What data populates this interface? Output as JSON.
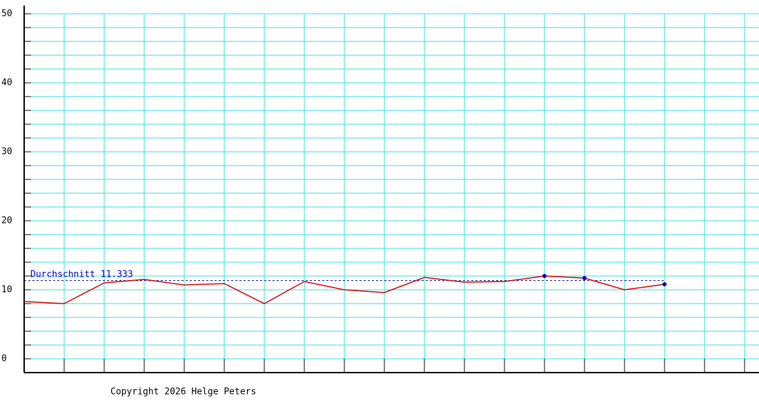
{
  "chart_data": {
    "type": "line",
    "x": [
      0,
      1,
      2,
      3,
      4,
      5,
      6,
      7,
      8,
      9,
      10,
      11,
      12,
      13,
      14,
      15,
      16
    ],
    "series": [
      {
        "color": "#cc0000",
        "values": [
          8.3,
          8.0,
          11.0,
          11.5,
          10.7,
          10.9,
          8.0,
          11.2,
          10.0,
          9.6,
          11.8,
          11.1,
          11.2,
          12.0,
          11.7,
          10.0,
          10.8
        ]
      },
      {
        "color": "#0000cc",
        "marker": true,
        "values": [
          null,
          null,
          null,
          null,
          null,
          null,
          null,
          null,
          null,
          null,
          null,
          null,
          null,
          12.0,
          11.7,
          null,
          10.8
        ]
      }
    ],
    "average": {
      "label": "Durchschnitt",
      "value": 11.333,
      "color": "#000080"
    },
    "xlim": [
      0,
      18.36
    ],
    "xticks": [
      0,
      1,
      2,
      3,
      4,
      5,
      6,
      7,
      8,
      9,
      10,
      11,
      12,
      13,
      14,
      15,
      16,
      17,
      18
    ],
    "ylim": [
      -2,
      51.2
    ],
    "yticks": [
      0,
      10,
      20,
      30,
      40,
      50
    ],
    "minor_yticks": [
      2,
      4,
      6,
      8,
      12,
      14,
      16,
      18,
      22,
      24,
      26,
      28,
      32,
      34,
      36,
      38,
      42,
      44,
      46,
      48
    ],
    "grid": true,
    "grid_color": "#33dddd",
    "footer": "Copyright 2026 Helge Peters"
  }
}
